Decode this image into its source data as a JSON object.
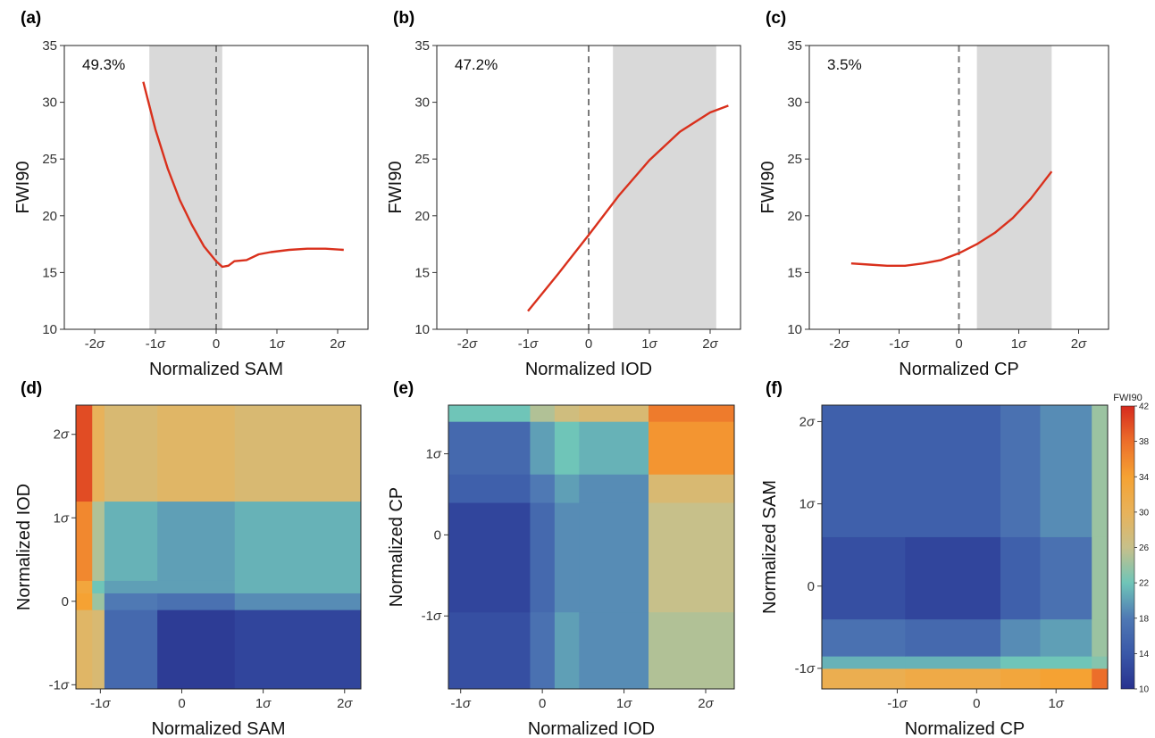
{
  "chart_data": [
    {
      "id": "a",
      "type": "line",
      "panel_label": "(a)",
      "xlabel": "Normalized SAM",
      "ylabel": "FWI90",
      "xlim": [
        -2.5,
        2.5
      ],
      "ylim": [
        10,
        35
      ],
      "xticks": [
        -2,
        -1,
        0,
        1,
        2
      ],
      "xtick_labels": [
        "-2σ",
        "-1σ",
        "0",
        "1σ",
        "2σ"
      ],
      "yticks": [
        10,
        15,
        20,
        25,
        30,
        35
      ],
      "ytick_labels": [
        "10",
        "15",
        "20",
        "25",
        "30",
        "35"
      ],
      "annotation": "49.3%",
      "shaded_range": [
        -1.1,
        0.1
      ],
      "vline": 0,
      "series": [
        {
          "color": "#d9301c",
          "x": [
            -1.2,
            -1.0,
            -0.8,
            -0.6,
            -0.4,
            -0.2,
            0.0,
            0.1,
            0.2,
            0.3,
            0.5,
            0.7,
            0.9,
            1.2,
            1.5,
            1.8,
            2.1
          ],
          "y": [
            31.8,
            27.6,
            24.2,
            21.4,
            19.2,
            17.3,
            16.0,
            15.5,
            15.6,
            16.0,
            16.1,
            16.6,
            16.8,
            17.0,
            17.1,
            17.1,
            17.0
          ]
        }
      ]
    },
    {
      "id": "b",
      "type": "line",
      "panel_label": "(b)",
      "xlabel": "Normalized IOD",
      "ylabel": "FWI90",
      "xlim": [
        -2.5,
        2.5
      ],
      "ylim": [
        10,
        35
      ],
      "xticks": [
        -2,
        -1,
        0,
        1,
        2
      ],
      "xtick_labels": [
        "-2σ",
        "-1σ",
        "0",
        "1σ",
        "2σ"
      ],
      "yticks": [
        10,
        15,
        20,
        25,
        30,
        35
      ],
      "ytick_labels": [
        "10",
        "15",
        "20",
        "25",
        "30",
        "35"
      ],
      "annotation": "47.2%",
      "shaded_range": [
        0.4,
        2.1
      ],
      "vline": 0,
      "series": [
        {
          "color": "#d9301c",
          "x": [
            -1.0,
            -0.5,
            0.0,
            0.5,
            1.0,
            1.5,
            2.0,
            2.3
          ],
          "y": [
            11.6,
            14.9,
            18.3,
            21.8,
            24.9,
            27.4,
            29.1,
            29.7
          ]
        }
      ]
    },
    {
      "id": "c",
      "type": "line",
      "panel_label": "(c)",
      "xlabel": "Normalized CP",
      "ylabel": "FWI90",
      "xlim": [
        -2.5,
        2.5
      ],
      "ylim": [
        10,
        35
      ],
      "xticks": [
        -2,
        -1,
        0,
        1,
        2
      ],
      "xtick_labels": [
        "-2σ",
        "-1σ",
        "0",
        "1σ",
        "2σ"
      ],
      "yticks": [
        10,
        15,
        20,
        25,
        30,
        35
      ],
      "ytick_labels": [
        "10",
        "15",
        "20",
        "25",
        "30",
        "35"
      ],
      "annotation": "3.5%",
      "shaded_range": [
        0.3,
        1.55
      ],
      "vline": 0,
      "series": [
        {
          "color": "#d9301c",
          "x": [
            -1.8,
            -1.5,
            -1.2,
            -0.9,
            -0.6,
            -0.3,
            0.0,
            0.3,
            0.6,
            0.9,
            1.2,
            1.55
          ],
          "y": [
            15.8,
            15.7,
            15.6,
            15.6,
            15.8,
            16.1,
            16.7,
            17.5,
            18.5,
            19.8,
            21.5,
            23.9
          ]
        }
      ]
    },
    {
      "id": "d",
      "type": "heatmap",
      "panel_label": "(d)",
      "xlabel": "Normalized SAM",
      "ylabel": "Normalized IOD",
      "xlim": [
        -1.3,
        2.2
      ],
      "ylim": [
        -1.05,
        2.35
      ],
      "xticks": [
        -1,
        0,
        1,
        2
      ],
      "xtick_labels": [
        "-1σ",
        "0",
        "1σ",
        "2σ"
      ],
      "yticks": [
        -1,
        0,
        1,
        2
      ],
      "ytick_labels": [
        "-1σ",
        "0",
        "1σ",
        "2σ"
      ],
      "x_edges": [
        -1.3,
        -1.1,
        -0.95,
        -0.3,
        0.65,
        2.2
      ],
      "y_edges": [
        -1.05,
        -0.1,
        0.1,
        0.25,
        1.2,
        2.35
      ],
      "values": [
        [
          29,
          28,
          16,
          11,
          12
        ],
        [
          34,
          24,
          18,
          17,
          19
        ],
        [
          33,
          22,
          20,
          20,
          21
        ],
        [
          36,
          25,
          21,
          20,
          21
        ],
        [
          40,
          30,
          28,
          29,
          28
        ]
      ]
    },
    {
      "id": "e",
      "type": "heatmap",
      "panel_label": "(e)",
      "xlabel": "Normalized IOD",
      "ylabel": "Normalized CP",
      "xlim": [
        -1.15,
        2.35
      ],
      "ylim": [
        -1.9,
        1.6
      ],
      "xticks": [
        -1,
        0,
        1,
        2
      ],
      "xtick_labels": [
        "-1σ",
        "0",
        "1σ",
        "2σ"
      ],
      "yticks": [
        -1,
        0,
        1
      ],
      "ytick_labels": [
        "-1σ",
        "0",
        "1σ"
      ],
      "x_edges": [
        -1.15,
        -0.15,
        0.15,
        0.45,
        1.3,
        2.35
      ],
      "y_edges": [
        -1.9,
        -0.95,
        0.4,
        0.75,
        1.4,
        1.6
      ],
      "values": [
        [
          13,
          17,
          20,
          19,
          25
        ],
        [
          12,
          16,
          19,
          19,
          26
        ],
        [
          15,
          18,
          20,
          19,
          28
        ],
        [
          16,
          20,
          22,
          21,
          35
        ],
        [
          22,
          25,
          27,
          28,
          37
        ]
      ]
    },
    {
      "id": "f",
      "type": "heatmap",
      "panel_label": "(f)",
      "xlabel": "Normalized CP",
      "ylabel": "Normalized SAM",
      "xlim": [
        -1.95,
        1.65
      ],
      "ylim": [
        -1.25,
        2.2
      ],
      "xticks": [
        -1,
        0,
        1
      ],
      "xtick_labels": [
        "-1σ",
        "0",
        "1σ"
      ],
      "yticks": [
        -1,
        0,
        1,
        2
      ],
      "ytick_labels": [
        "-1σ",
        "0",
        "1σ",
        "2σ"
      ],
      "x_edges": [
        -1.95,
        -0.9,
        0.3,
        0.8,
        1.45,
        1.65
      ],
      "y_edges": [
        -1.25,
        -1.0,
        -0.85,
        -0.4,
        0.6,
        2.2
      ],
      "values": [
        [
          31,
          32,
          33,
          34,
          38
        ],
        [
          21,
          21,
          22,
          22,
          23
        ],
        [
          17,
          16,
          19,
          20,
          24
        ],
        [
          13,
          12,
          15,
          17,
          24
        ],
        [
          15,
          15,
          17,
          19,
          24
        ]
      ],
      "colorbar": {
        "title": "FWI90",
        "range": [
          10,
          42
        ],
        "ticks": [
          10,
          14,
          18,
          22,
          26,
          30,
          34,
          38,
          42
        ],
        "tick_labels": [
          "10",
          "14",
          "18",
          "22",
          "26",
          "30",
          "34",
          "38",
          "42"
        ],
        "colors": [
          "#28328f",
          "#3a58a8",
          "#4f79b4",
          "#6fc5b8",
          "#c7c08a",
          "#e8b25a",
          "#f5a233",
          "#ec6e2a",
          "#d62a1e"
        ]
      }
    }
  ]
}
